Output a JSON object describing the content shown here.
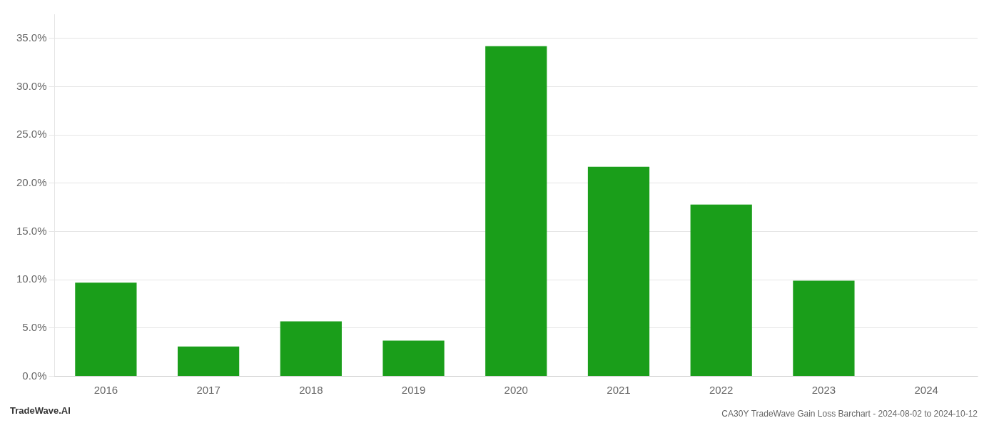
{
  "chart_data": {
    "type": "bar",
    "title": "CA30Y TradeWave Gain Loss Barchart - 2024-08-02 to 2024-10-12",
    "annotations": [
      "TradeWave.AI"
    ],
    "categories": [
      "2016",
      "2017",
      "2018",
      "2019",
      "2020",
      "2021",
      "2022",
      "2023",
      "2024"
    ],
    "values": [
      0.097,
      0.031,
      0.057,
      0.037,
      0.342,
      0.217,
      0.178,
      0.099,
      0.0
    ],
    "color": "#1a9e1a",
    "ylim": [
      0,
      0.375
    ],
    "yticks": [
      {
        "value": 0.0,
        "label": "0.0%"
      },
      {
        "value": 0.05,
        "label": "5.0%"
      },
      {
        "value": 0.1,
        "label": "10.0%"
      },
      {
        "value": 0.15,
        "label": "15.0%"
      },
      {
        "value": 0.2,
        "label": "20.0%"
      },
      {
        "value": 0.25,
        "label": "25.0%"
      },
      {
        "value": 0.3,
        "label": "30.0%"
      },
      {
        "value": 0.35,
        "label": "35.0%"
      }
    ],
    "grid": true
  }
}
